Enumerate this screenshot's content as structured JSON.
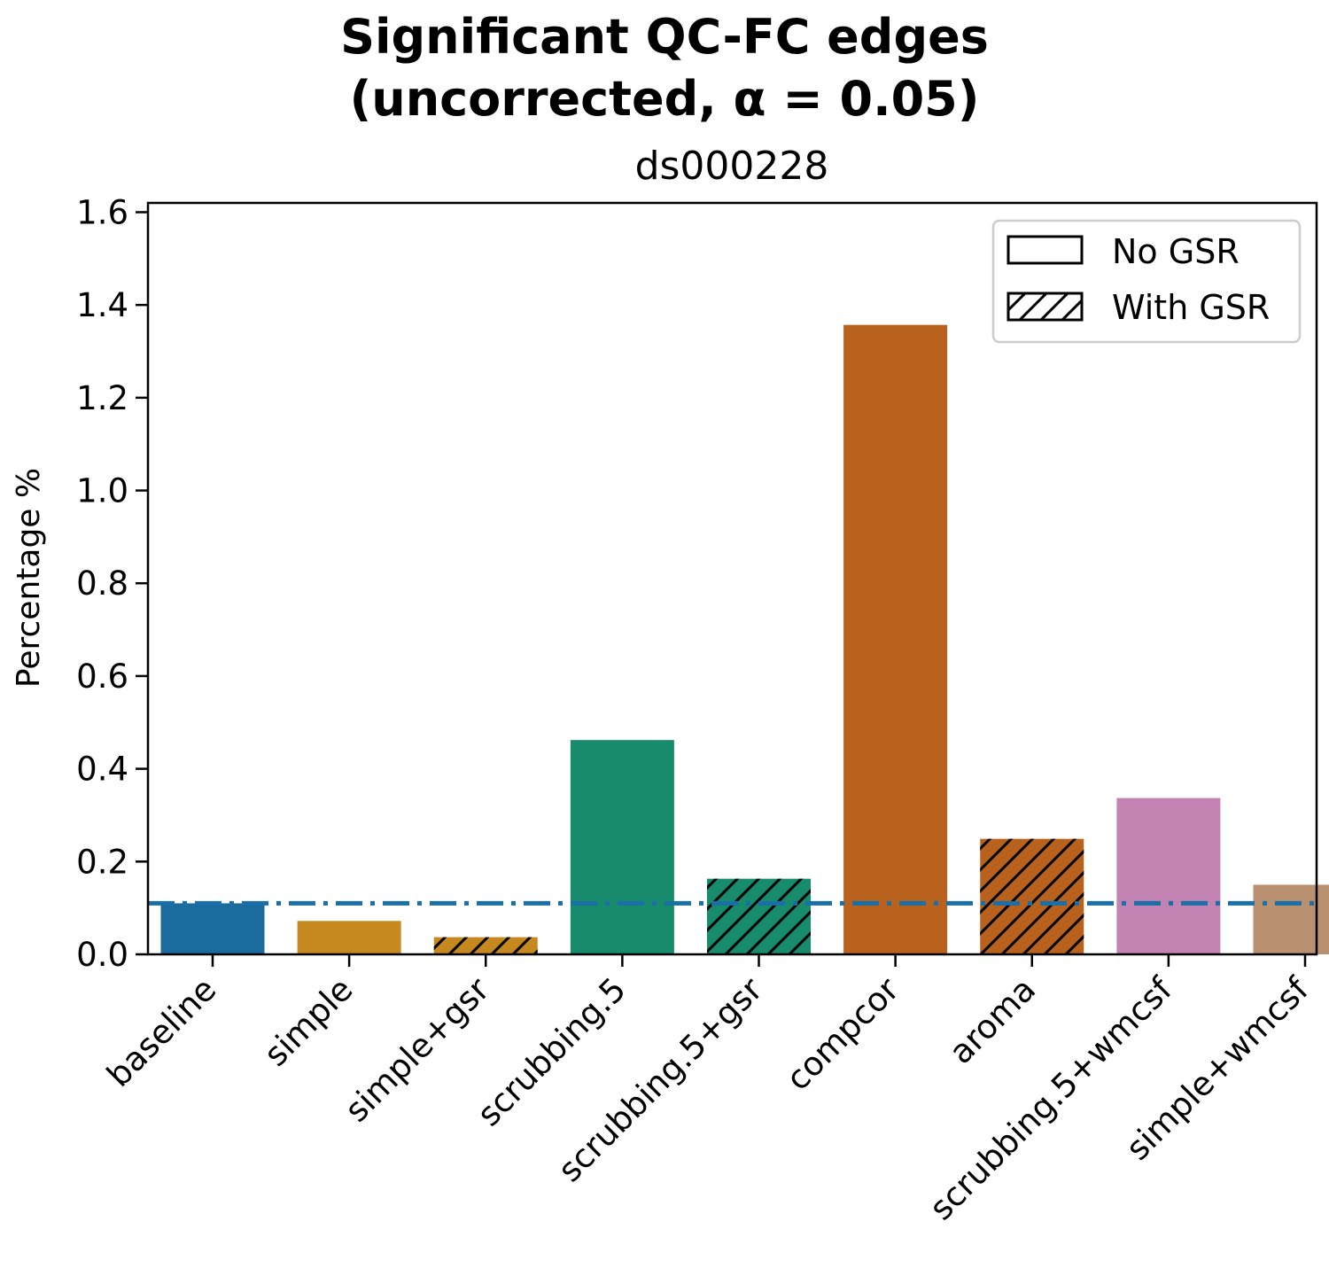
{
  "chart_data": {
    "type": "bar",
    "title": "Significant QC-FC edges",
    "title_line2": "(uncorrected, α = 0.05)",
    "subtitle": "ds000228",
    "xlabel": "",
    "ylabel": "Percentage %",
    "ylim": [
      0,
      1.62
    ],
    "yticks": [
      "0.0",
      "0.2",
      "0.4",
      "0.6",
      "0.8",
      "1.0",
      "1.2",
      "1.4",
      "1.6"
    ],
    "categories": [
      "baseline",
      "simple",
      "simple+gsr",
      "scrubbing.5",
      "scrubbing.5+gsr",
      "compcor",
      "aroma",
      "scrubbing.5+wmcsf",
      "simple+wmcsf"
    ],
    "values": [
      0.11,
      0.072,
      0.037,
      0.462,
      0.163,
      1.357,
      0.249,
      0.337,
      0.15
    ],
    "gsr": [
      false,
      false,
      true,
      false,
      true,
      false,
      true,
      false,
      false
    ],
    "colors": [
      "#1a6c9f",
      "#c58920",
      "#c58920",
      "#178b6b",
      "#178b6b",
      "#b8621e",
      "#b8621e",
      "#c283b3",
      "#b99070"
    ],
    "reference_line": {
      "value": 0.11,
      "color": "#1a6fa6",
      "style": "dash-dot"
    },
    "legend": {
      "position": "top-right",
      "entries": [
        {
          "label": "No GSR",
          "hatch": false
        },
        {
          "label": "With GSR",
          "hatch": true
        }
      ]
    },
    "grid": false
  }
}
